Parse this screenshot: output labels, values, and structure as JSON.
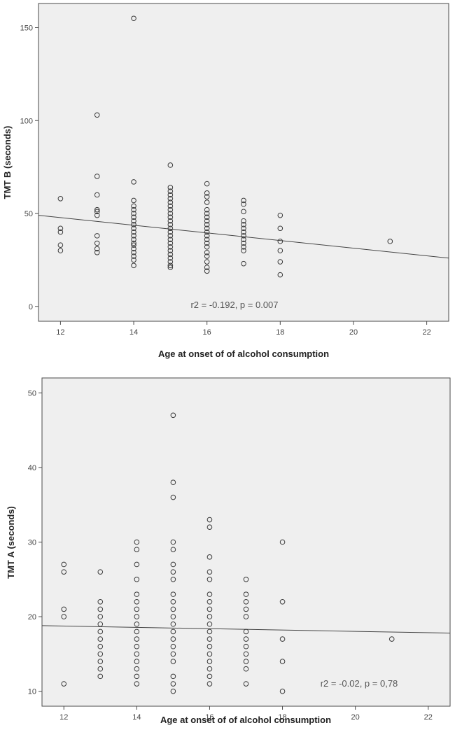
{
  "chart_data": [
    {
      "type": "scatter",
      "xlabel": "Age at onset of of alcohol consumption",
      "ylabel": "TMT B (seconds)",
      "xlim": [
        11.4,
        22.6
      ],
      "ylim": [
        -8,
        163
      ],
      "xticks": [
        12,
        14,
        16,
        18,
        20,
        22
      ],
      "yticks": [
        0,
        50,
        100,
        150
      ],
      "grid": false,
      "annotation": "r2 = -0.192, p = 0.007",
      "points": [
        [
          12,
          58
        ],
        [
          12,
          42
        ],
        [
          12,
          40
        ],
        [
          12,
          33
        ],
        [
          12,
          30
        ],
        [
          13,
          103
        ],
        [
          13,
          70
        ],
        [
          13,
          60
        ],
        [
          13,
          52
        ],
        [
          13,
          51
        ],
        [
          13,
          49
        ],
        [
          13,
          38
        ],
        [
          13,
          34
        ],
        [
          13,
          31
        ],
        [
          13,
          29
        ],
        [
          14,
          155
        ],
        [
          14,
          67
        ],
        [
          14,
          57
        ],
        [
          14,
          54
        ],
        [
          14,
          52
        ],
        [
          14,
          50
        ],
        [
          14,
          48
        ],
        [
          14,
          46
        ],
        [
          14,
          44
        ],
        [
          14,
          42
        ],
        [
          14,
          40
        ],
        [
          14,
          38
        ],
        [
          14,
          36
        ],
        [
          14,
          34
        ],
        [
          14,
          33
        ],
        [
          14,
          31
        ],
        [
          14,
          29
        ],
        [
          14,
          27
        ],
        [
          14,
          25
        ],
        [
          14,
          22
        ],
        [
          15,
          76
        ],
        [
          15,
          64
        ],
        [
          15,
          62
        ],
        [
          15,
          60
        ],
        [
          15,
          58
        ],
        [
          15,
          56
        ],
        [
          15,
          54
        ],
        [
          15,
          52
        ],
        [
          15,
          50
        ],
        [
          15,
          48
        ],
        [
          15,
          46
        ],
        [
          15,
          44
        ],
        [
          15,
          42
        ],
        [
          15,
          40
        ],
        [
          15,
          38
        ],
        [
          15,
          36
        ],
        [
          15,
          34
        ],
        [
          15,
          32
        ],
        [
          15,
          30
        ],
        [
          15,
          28
        ],
        [
          15,
          26
        ],
        [
          15,
          24
        ],
        [
          15,
          22
        ],
        [
          15,
          21
        ],
        [
          16,
          66
        ],
        [
          16,
          61
        ],
        [
          16,
          59
        ],
        [
          16,
          56
        ],
        [
          16,
          52
        ],
        [
          16,
          50
        ],
        [
          16,
          48
        ],
        [
          16,
          46
        ],
        [
          16,
          44
        ],
        [
          16,
          42
        ],
        [
          16,
          40
        ],
        [
          16,
          38
        ],
        [
          16,
          36
        ],
        [
          16,
          34
        ],
        [
          16,
          32
        ],
        [
          16,
          29
        ],
        [
          16,
          27
        ],
        [
          16,
          24
        ],
        [
          16,
          21
        ],
        [
          16,
          19
        ],
        [
          17,
          57
        ],
        [
          17,
          55
        ],
        [
          17,
          51
        ],
        [
          17,
          46
        ],
        [
          17,
          44
        ],
        [
          17,
          42
        ],
        [
          17,
          40
        ],
        [
          17,
          38
        ],
        [
          17,
          36
        ],
        [
          17,
          34
        ],
        [
          17,
          32
        ],
        [
          17,
          30
        ],
        [
          17,
          23
        ],
        [
          18,
          49
        ],
        [
          18,
          42
        ],
        [
          18,
          35
        ],
        [
          18,
          30
        ],
        [
          18,
          24
        ],
        [
          18,
          17
        ],
        [
          21,
          35
        ]
      ],
      "fit_line": [
        [
          11.4,
          49
        ],
        [
          22.6,
          26
        ]
      ]
    },
    {
      "type": "scatter",
      "xlabel": "Age at onset of of alcohol consumption",
      "ylabel": "TMT A (seconds)",
      "xlim": [
        11.4,
        22.6
      ],
      "ylim": [
        8,
        52
      ],
      "xticks": [
        12,
        14,
        16,
        18,
        20,
        22
      ],
      "yticks": [
        10,
        20,
        30,
        40,
        50
      ],
      "grid": false,
      "annotation": "r2 = -0.02, p = 0,78",
      "points": [
        [
          12,
          27
        ],
        [
          12,
          26
        ],
        [
          12,
          21
        ],
        [
          12,
          20
        ],
        [
          12,
          11
        ],
        [
          13,
          26
        ],
        [
          13,
          22
        ],
        [
          13,
          21
        ],
        [
          13,
          20
        ],
        [
          13,
          19
        ],
        [
          13,
          18
        ],
        [
          13,
          17
        ],
        [
          13,
          16
        ],
        [
          13,
          15
        ],
        [
          13,
          14
        ],
        [
          13,
          13
        ],
        [
          13,
          12
        ],
        [
          14,
          30
        ],
        [
          14,
          29
        ],
        [
          14,
          27
        ],
        [
          14,
          25
        ],
        [
          14,
          23
        ],
        [
          14,
          22
        ],
        [
          14,
          21
        ],
        [
          14,
          20
        ],
        [
          14,
          19
        ],
        [
          14,
          18
        ],
        [
          14,
          17
        ],
        [
          14,
          16
        ],
        [
          14,
          15
        ],
        [
          14,
          14
        ],
        [
          14,
          13
        ],
        [
          14,
          12
        ],
        [
          14,
          11
        ],
        [
          15,
          47
        ],
        [
          15,
          38
        ],
        [
          15,
          36
        ],
        [
          15,
          30
        ],
        [
          15,
          29
        ],
        [
          15,
          27
        ],
        [
          15,
          26
        ],
        [
          15,
          25
        ],
        [
          15,
          23
        ],
        [
          15,
          22
        ],
        [
          15,
          21
        ],
        [
          15,
          20
        ],
        [
          15,
          19
        ],
        [
          15,
          18
        ],
        [
          15,
          17
        ],
        [
          15,
          16
        ],
        [
          15,
          15
        ],
        [
          15,
          14
        ],
        [
          15,
          12
        ],
        [
          15,
          11
        ],
        [
          15,
          10
        ],
        [
          16,
          33
        ],
        [
          16,
          32
        ],
        [
          16,
          28
        ],
        [
          16,
          26
        ],
        [
          16,
          25
        ],
        [
          16,
          23
        ],
        [
          16,
          22
        ],
        [
          16,
          21
        ],
        [
          16,
          20
        ],
        [
          16,
          19
        ],
        [
          16,
          18
        ],
        [
          16,
          17
        ],
        [
          16,
          16
        ],
        [
          16,
          15
        ],
        [
          16,
          14
        ],
        [
          16,
          13
        ],
        [
          16,
          12
        ],
        [
          16,
          11
        ],
        [
          17,
          25
        ],
        [
          17,
          23
        ],
        [
          17,
          22
        ],
        [
          17,
          21
        ],
        [
          17,
          20
        ],
        [
          17,
          18
        ],
        [
          17,
          17
        ],
        [
          17,
          16
        ],
        [
          17,
          15
        ],
        [
          17,
          14
        ],
        [
          17,
          13
        ],
        [
          17,
          11
        ],
        [
          18,
          30
        ],
        [
          18,
          22
        ],
        [
          18,
          17
        ],
        [
          18,
          14
        ],
        [
          18,
          10
        ],
        [
          21,
          17
        ]
      ],
      "fit_line": [
        [
          11.4,
          18.8
        ],
        [
          22.6,
          17.8
        ]
      ]
    }
  ]
}
